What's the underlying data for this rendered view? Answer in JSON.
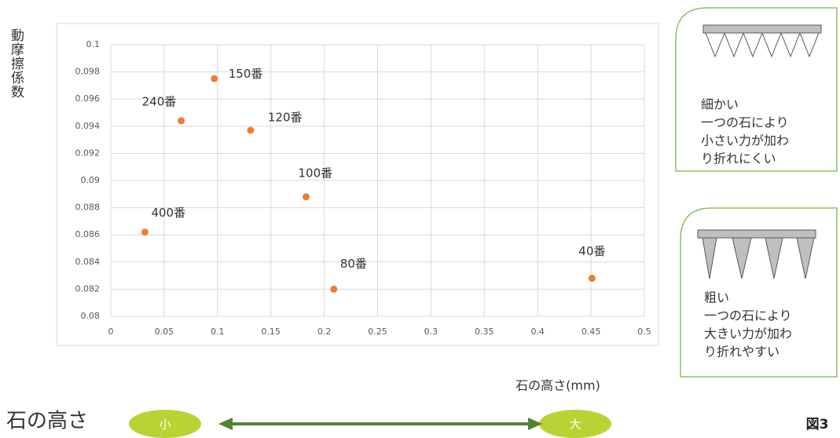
{
  "chart_data": {
    "type": "scatter",
    "ylabel": "動摩擦係数",
    "xlabel": "石の高さ(mm)",
    "labels": [
      "400番",
      "240番",
      "150番",
      "120番",
      "100番",
      "80番",
      "40番"
    ],
    "x": [
      0.032,
      0.066,
      0.097,
      0.131,
      0.183,
      0.209,
      0.451
    ],
    "values": [
      0.0862,
      0.0944,
      0.0975,
      0.0937,
      0.0888,
      0.082,
      0.0828
    ],
    "color": "#ed7d31",
    "xlim": [
      0,
      0.5
    ],
    "xticks": [
      0,
      0.05,
      0.1,
      0.15,
      0.2,
      0.25,
      0.3,
      0.35,
      0.4,
      0.45,
      0.5
    ],
    "ylim": [
      0.08,
      0.1
    ],
    "yticks": [
      0.08,
      0.082,
      0.084,
      0.086,
      0.088,
      0.09,
      0.092,
      0.094,
      0.096,
      0.098,
      0.1
    ],
    "grid": true
  },
  "notes": [
    {
      "lines": [
        "細かい",
        "一つの石により",
        "小さい力が加わ",
        "り折れにくい"
      ]
    },
    {
      "lines": [
        "粗い",
        "一つの石により",
        "大きい力が加わ",
        "り折れやすい"
      ]
    }
  ],
  "scale": {
    "title": "石の高さ",
    "small": "小",
    "large": "大"
  },
  "figure_label": "図3"
}
